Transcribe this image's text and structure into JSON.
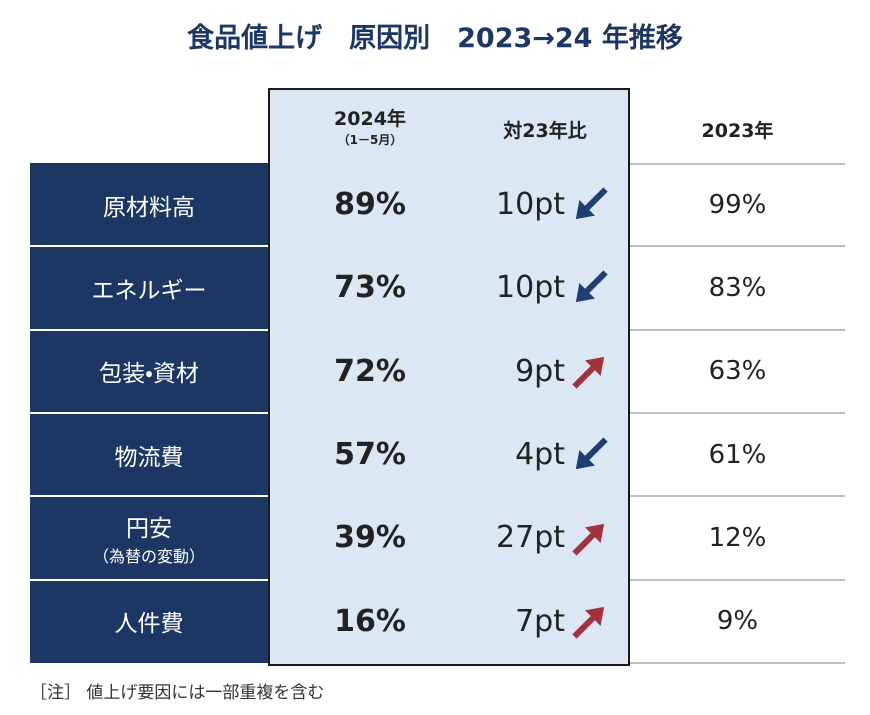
{
  "title": "食品値上げ　原因別　2023→24 年推移",
  "table": {
    "headers": {
      "col_2024": "2024年",
      "col_2024_sub": "（1－5月）",
      "change": "対23年比",
      "col_2023": "2023年"
    },
    "rows": [
      {
        "label": "原材料高",
        "value_2024": "89%",
        "change": "10pt",
        "direction": "down",
        "value_2023": "99%"
      },
      {
        "label": "エネルギー",
        "value_2024": "73%",
        "change": "10pt",
        "direction": "down",
        "value_2023": "83%"
      },
      {
        "label": "包装・資材",
        "value_2024": "72%",
        "change": "9pt",
        "direction": "up",
        "value_2023": "63%"
      },
      {
        "label": "物流費",
        "value_2024": "57%",
        "change": "4pt",
        "direction": "down",
        "value_2023": "61%"
      },
      {
        "label": "円安",
        "sublabel": "（為替の変動）",
        "value_2024": "39%",
        "change": "27pt",
        "direction": "up",
        "value_2023": "12%"
      },
      {
        "label": "人件費",
        "value_2024": "16%",
        "change": "7pt",
        "direction": "up",
        "value_2023": "9%"
      }
    ]
  },
  "note": "［注］ 値上げ要因には一部重複を含む"
}
